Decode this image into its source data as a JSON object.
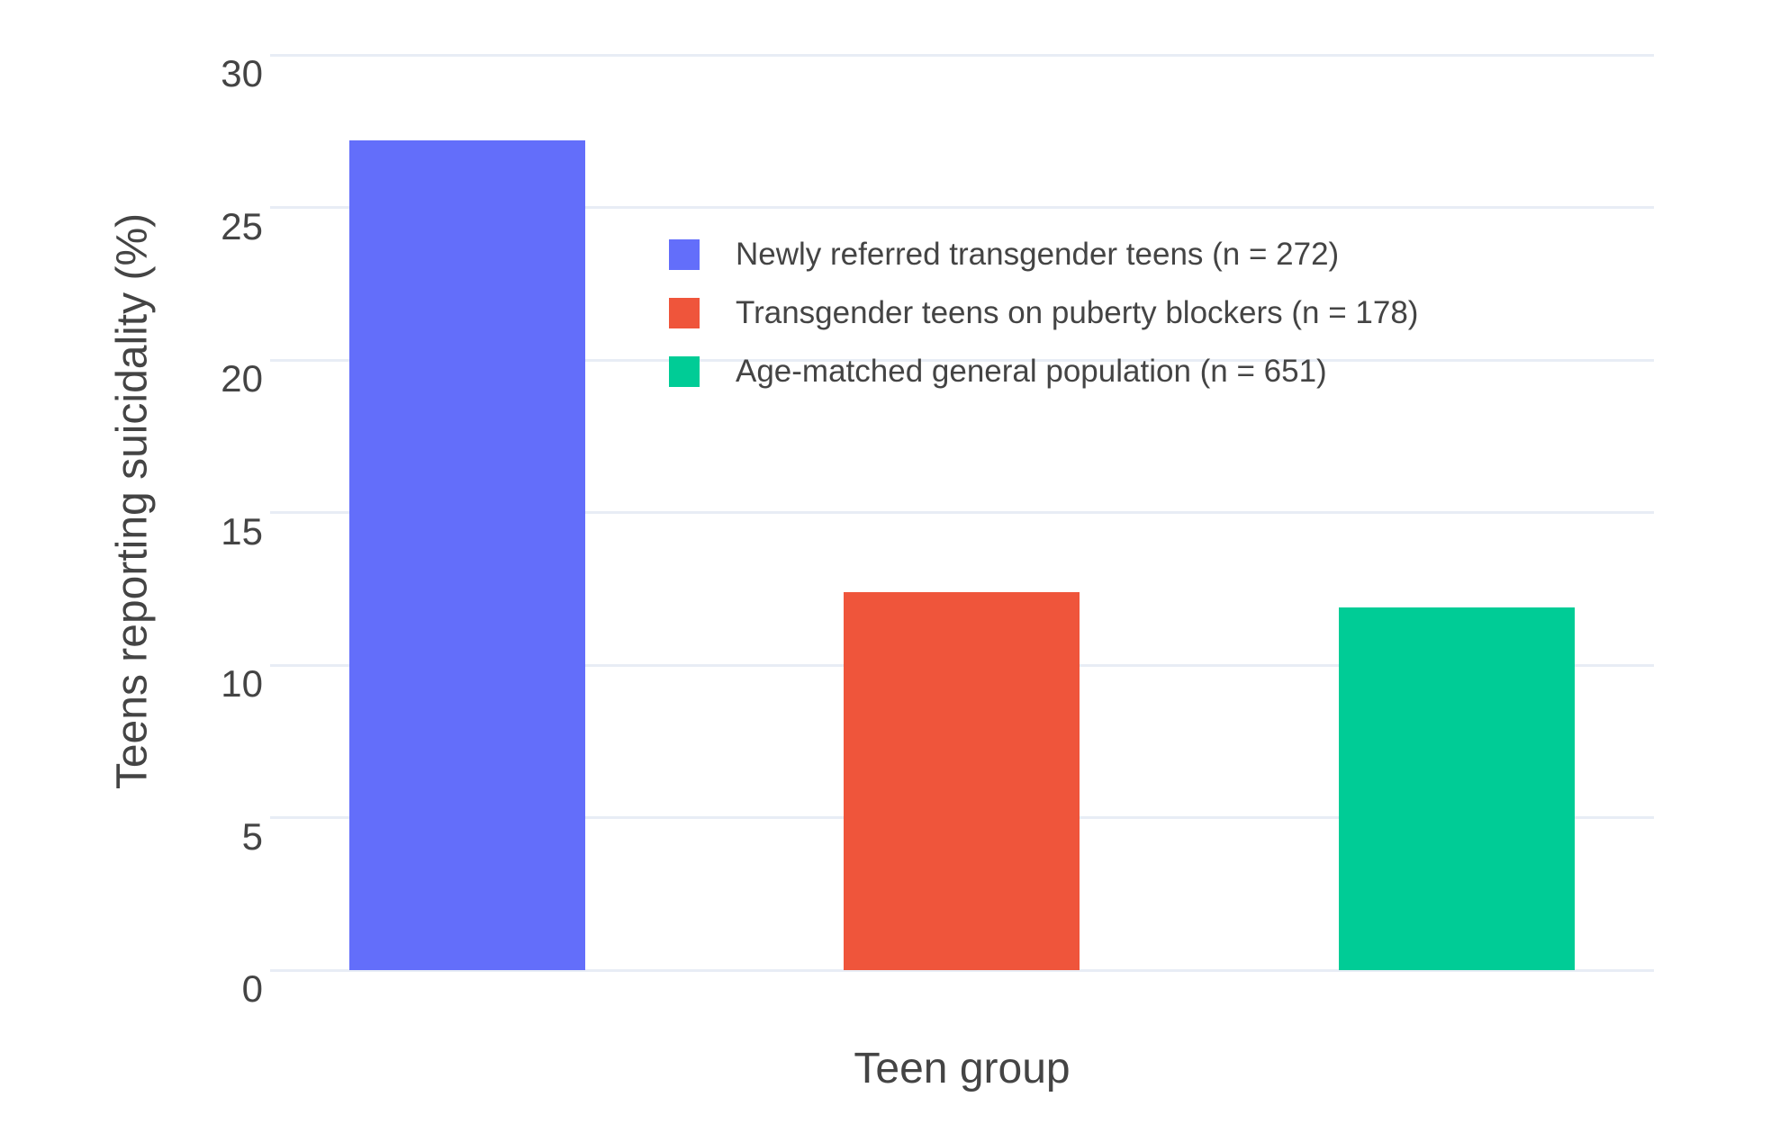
{
  "figure": {
    "background": "#ffffff",
    "text_color": "#444444"
  },
  "chart_data": {
    "type": "bar",
    "title": "",
    "xlabel": "Teen group",
    "ylabel": "Teens reporting suicidality (%)",
    "ylim": [
      0,
      30
    ],
    "yticks": [
      0,
      5,
      10,
      15,
      20,
      25,
      30
    ],
    "x_tick_labels": [],
    "grid": true,
    "gridline_color": "#e8edf5",
    "legend_position": "inside upper-center",
    "categories": [
      "Teen group"
    ],
    "series": [
      {
        "name": "Newly referred transgender teens (n = 272)",
        "values": [
          27.2
        ],
        "color": "#636efa"
      },
      {
        "name": "Transgender teens on puberty blockers (n = 178)",
        "values": [
          12.4
        ],
        "color": "#ef553b"
      },
      {
        "name": "Age-matched general population (n = 651)",
        "values": [
          11.9
        ],
        "color": "#00cc96"
      }
    ]
  }
}
